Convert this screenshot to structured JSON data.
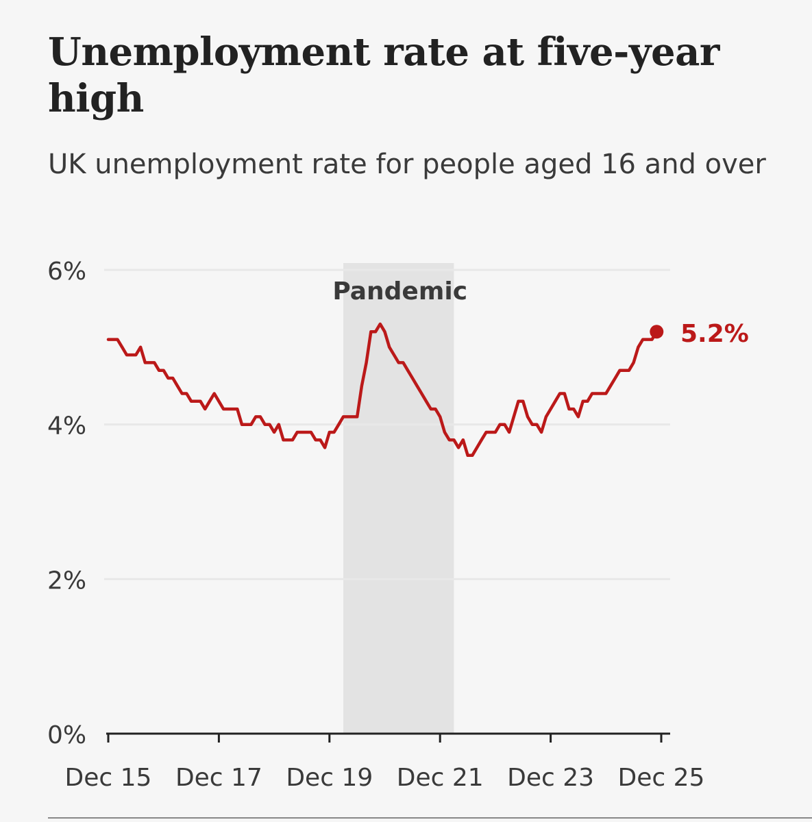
{
  "title": "Unemployment rate at five-year high",
  "subtitle": "UK unemployment rate for people aged 16 and over",
  "colors": {
    "line": "#bb1919",
    "band": "#e3e3e3",
    "grid": "#e8e8e8",
    "axis": "#222222"
  },
  "chart_data": {
    "type": "line",
    "title": "Unemployment rate at five-year high",
    "subtitle": "UK unemployment rate for people aged 16 and over",
    "xlabel": "",
    "ylabel": "",
    "ylim": [
      0,
      6
    ],
    "xlim": [
      "2015-12",
      "2025-12"
    ],
    "y_ticks": [
      0,
      2,
      4,
      6
    ],
    "y_tick_labels": [
      "0%",
      "2%",
      "4%",
      "6%"
    ],
    "x_ticks": [
      "2015-12",
      "2017-12",
      "2019-12",
      "2021-12",
      "2023-12",
      "2025-12"
    ],
    "x_tick_labels": [
      "Dec 15",
      "Dec 17",
      "Dec 19",
      "Dec 21",
      "Dec 23",
      "Dec 25"
    ],
    "grid": "horizontal",
    "annotations": [
      {
        "type": "band",
        "label": "Pandemic",
        "x_start": "2020-03",
        "x_end": "2022-03"
      }
    ],
    "end_label": "5.2%",
    "series": [
      {
        "values": [
          {
            "x": "2015-12",
            "y": 5.1
          },
          {
            "x": "2016-01",
            "y": 5.1
          },
          {
            "x": "2016-02",
            "y": 5.1
          },
          {
            "x": "2016-03",
            "y": 5.0
          },
          {
            "x": "2016-04",
            "y": 4.9
          },
          {
            "x": "2016-05",
            "y": 4.9
          },
          {
            "x": "2016-06",
            "y": 4.9
          },
          {
            "x": "2016-07",
            "y": 5.0
          },
          {
            "x": "2016-08",
            "y": 4.8
          },
          {
            "x": "2016-09",
            "y": 4.8
          },
          {
            "x": "2016-10",
            "y": 4.8
          },
          {
            "x": "2016-11",
            "y": 4.7
          },
          {
            "x": "2016-12",
            "y": 4.7
          },
          {
            "x": "2017-01",
            "y": 4.6
          },
          {
            "x": "2017-02",
            "y": 4.6
          },
          {
            "x": "2017-03",
            "y": 4.5
          },
          {
            "x": "2017-04",
            "y": 4.4
          },
          {
            "x": "2017-05",
            "y": 4.4
          },
          {
            "x": "2017-06",
            "y": 4.3
          },
          {
            "x": "2017-07",
            "y": 4.3
          },
          {
            "x": "2017-08",
            "y": 4.3
          },
          {
            "x": "2017-09",
            "y": 4.2
          },
          {
            "x": "2017-10",
            "y": 4.3
          },
          {
            "x": "2017-11",
            "y": 4.4
          },
          {
            "x": "2017-12",
            "y": 4.3
          },
          {
            "x": "2018-01",
            "y": 4.2
          },
          {
            "x": "2018-02",
            "y": 4.2
          },
          {
            "x": "2018-03",
            "y": 4.2
          },
          {
            "x": "2018-04",
            "y": 4.2
          },
          {
            "x": "2018-05",
            "y": 4.0
          },
          {
            "x": "2018-06",
            "y": 4.0
          },
          {
            "x": "2018-07",
            "y": 4.0
          },
          {
            "x": "2018-08",
            "y": 4.1
          },
          {
            "x": "2018-09",
            "y": 4.1
          },
          {
            "x": "2018-10",
            "y": 4.0
          },
          {
            "x": "2018-11",
            "y": 4.0
          },
          {
            "x": "2018-12",
            "y": 3.9
          },
          {
            "x": "2019-01",
            "y": 4.0
          },
          {
            "x": "2019-02",
            "y": 3.8
          },
          {
            "x": "2019-03",
            "y": 3.8
          },
          {
            "x": "2019-04",
            "y": 3.8
          },
          {
            "x": "2019-05",
            "y": 3.9
          },
          {
            "x": "2019-06",
            "y": 3.9
          },
          {
            "x": "2019-07",
            "y": 3.9
          },
          {
            "x": "2019-08",
            "y": 3.9
          },
          {
            "x": "2019-09",
            "y": 3.8
          },
          {
            "x": "2019-10",
            "y": 3.8
          },
          {
            "x": "2019-11",
            "y": 3.7
          },
          {
            "x": "2019-12",
            "y": 3.9
          },
          {
            "x": "2020-01",
            "y": 3.9
          },
          {
            "x": "2020-02",
            "y": 4.0
          },
          {
            "x": "2020-03",
            "y": 4.1
          },
          {
            "x": "2020-04",
            "y": 4.1
          },
          {
            "x": "2020-05",
            "y": 4.1
          },
          {
            "x": "2020-06",
            "y": 4.1
          },
          {
            "x": "2020-07",
            "y": 4.5
          },
          {
            "x": "2020-08",
            "y": 4.8
          },
          {
            "x": "2020-09",
            "y": 5.2
          },
          {
            "x": "2020-10",
            "y": 5.2
          },
          {
            "x": "2020-11",
            "y": 5.3
          },
          {
            "x": "2020-12",
            "y": 5.2
          },
          {
            "x": "2021-01",
            "y": 5.0
          },
          {
            "x": "2021-02",
            "y": 4.9
          },
          {
            "x": "2021-03",
            "y": 4.8
          },
          {
            "x": "2021-04",
            "y": 4.8
          },
          {
            "x": "2021-05",
            "y": 4.7
          },
          {
            "x": "2021-06",
            "y": 4.6
          },
          {
            "x": "2021-07",
            "y": 4.5
          },
          {
            "x": "2021-08",
            "y": 4.4
          },
          {
            "x": "2021-09",
            "y": 4.3
          },
          {
            "x": "2021-10",
            "y": 4.2
          },
          {
            "x": "2021-11",
            "y": 4.2
          },
          {
            "x": "2021-12",
            "y": 4.1
          },
          {
            "x": "2022-01",
            "y": 3.9
          },
          {
            "x": "2022-02",
            "y": 3.8
          },
          {
            "x": "2022-03",
            "y": 3.8
          },
          {
            "x": "2022-04",
            "y": 3.7
          },
          {
            "x": "2022-05",
            "y": 3.8
          },
          {
            "x": "2022-06",
            "y": 3.6
          },
          {
            "x": "2022-07",
            "y": 3.6
          },
          {
            "x": "2022-08",
            "y": 3.7
          },
          {
            "x": "2022-09",
            "y": 3.8
          },
          {
            "x": "2022-10",
            "y": 3.9
          },
          {
            "x": "2022-11",
            "y": 3.9
          },
          {
            "x": "2022-12",
            "y": 3.9
          },
          {
            "x": "2023-01",
            "y": 4.0
          },
          {
            "x": "2023-02",
            "y": 4.0
          },
          {
            "x": "2023-03",
            "y": 3.9
          },
          {
            "x": "2023-04",
            "y": 4.1
          },
          {
            "x": "2023-05",
            "y": 4.3
          },
          {
            "x": "2023-06",
            "y": 4.3
          },
          {
            "x": "2023-07",
            "y": 4.1
          },
          {
            "x": "2023-08",
            "y": 4.0
          },
          {
            "x": "2023-09",
            "y": 4.0
          },
          {
            "x": "2023-10",
            "y": 3.9
          },
          {
            "x": "2023-11",
            "y": 4.1
          },
          {
            "x": "2023-12",
            "y": 4.2
          },
          {
            "x": "2024-01",
            "y": 4.3
          },
          {
            "x": "2024-02",
            "y": 4.4
          },
          {
            "x": "2024-03",
            "y": 4.4
          },
          {
            "x": "2024-04",
            "y": 4.2
          },
          {
            "x": "2024-05",
            "y": 4.2
          },
          {
            "x": "2024-06",
            "y": 4.1
          },
          {
            "x": "2024-07",
            "y": 4.3
          },
          {
            "x": "2024-08",
            "y": 4.3
          },
          {
            "x": "2024-09",
            "y": 4.4
          },
          {
            "x": "2024-10",
            "y": 4.4
          },
          {
            "x": "2024-11",
            "y": 4.4
          },
          {
            "x": "2024-12",
            "y": 4.4
          },
          {
            "x": "2025-01",
            "y": 4.5
          },
          {
            "x": "2025-02",
            "y": 4.6
          },
          {
            "x": "2025-03",
            "y": 4.7
          },
          {
            "x": "2025-04",
            "y": 4.7
          },
          {
            "x": "2025-05",
            "y": 4.7
          },
          {
            "x": "2025-06",
            "y": 4.8
          },
          {
            "x": "2025-07",
            "y": 5.0
          },
          {
            "x": "2025-08",
            "y": 5.1
          },
          {
            "x": "2025-09",
            "y": 5.1
          },
          {
            "x": "2025-10",
            "y": 5.1
          },
          {
            "x": "2025-11",
            "y": 5.2
          }
        ]
      }
    ]
  }
}
